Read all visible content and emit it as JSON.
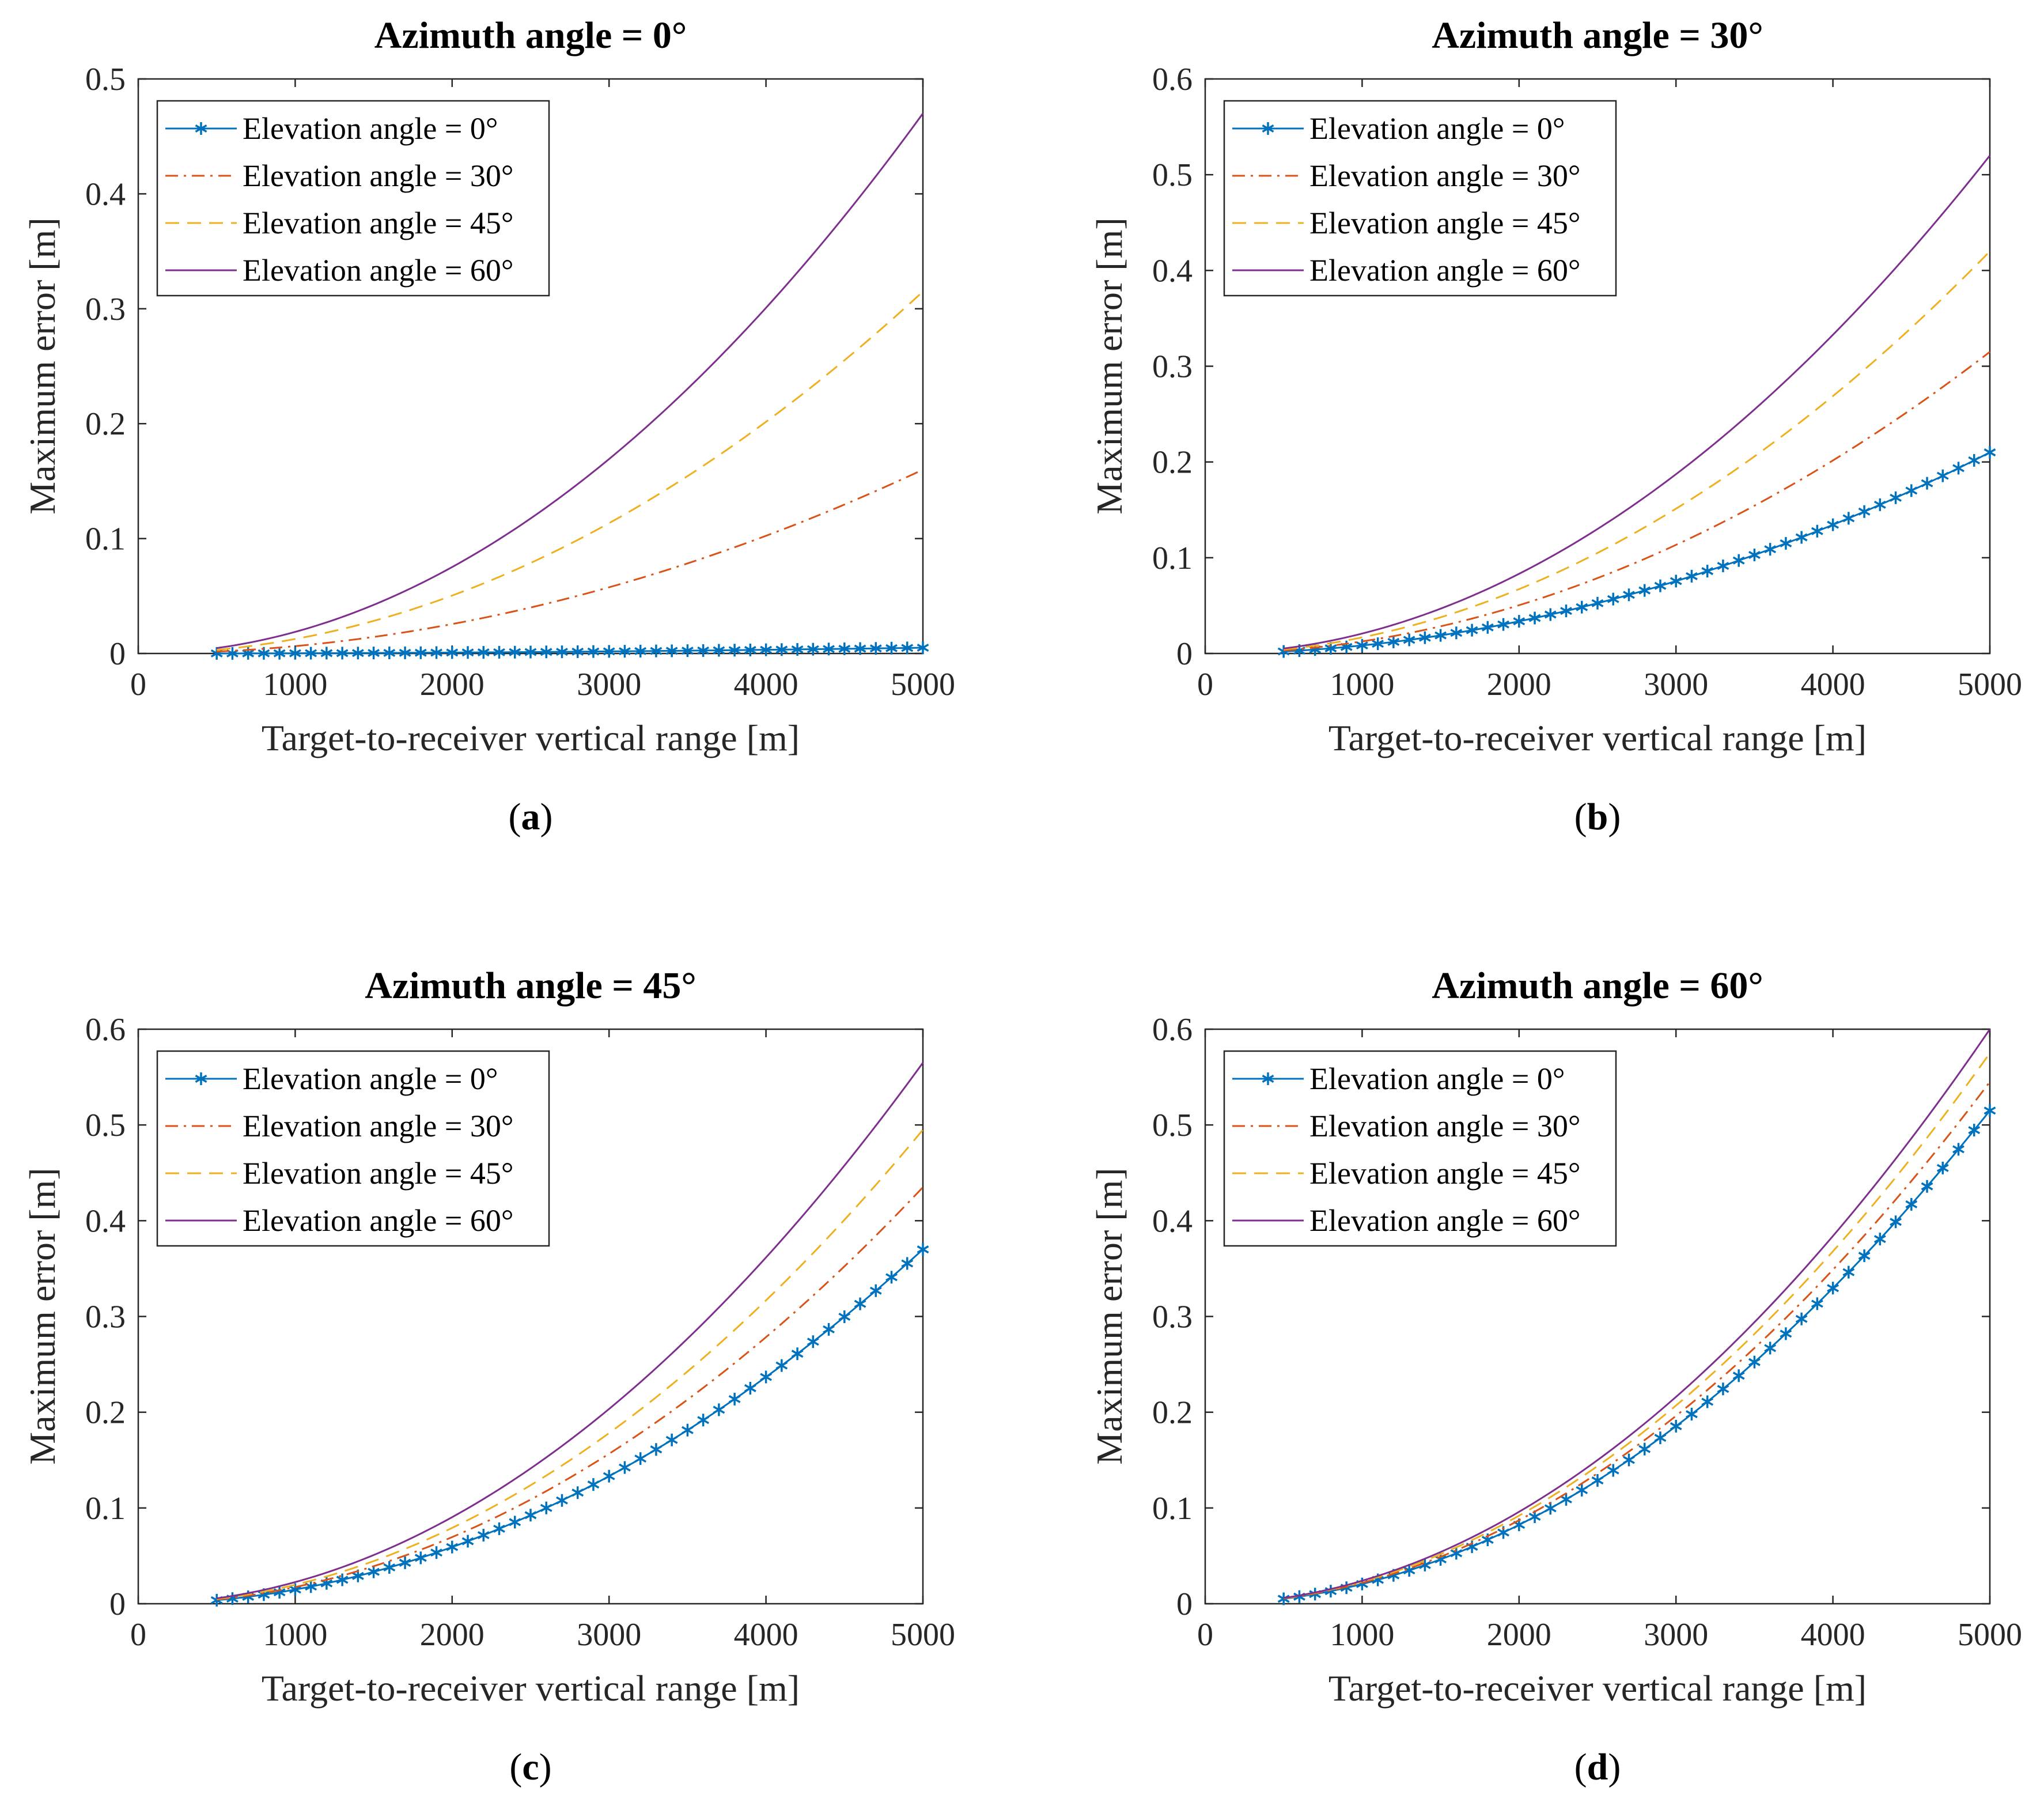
{
  "colors": {
    "series_blue": "#0072BD",
    "series_orange": "#D95319",
    "series_yellow": "#EDB120",
    "series_purple": "#7E2F8E",
    "axis": "#262626"
  },
  "chart_data": [
    {
      "type": "line",
      "title": "Azimuth angle = 0°",
      "xlabel": "Target-to-receiver vertical range [m]",
      "ylabel": "Maximum error [m]",
      "xlim": [
        0,
        5000
      ],
      "ylim": [
        0,
        0.5
      ],
      "xticks": [
        "0",
        "1000",
        "2000",
        "3000",
        "4000",
        "5000"
      ],
      "yticks": [
        "0",
        "0.1",
        "0.2",
        "0.3",
        "0.4",
        "0.5"
      ],
      "legend_position": "top-left",
      "caption_letter": "a",
      "caption": {
        "open": "(",
        "letter": "a",
        "close": ")"
      },
      "x_start": 500,
      "x_end": 5000,
      "series": [
        {
          "name": "Elevation angle = 0°",
          "style": "solid-star",
          "color": "#0072BD",
          "end_value": 0.005
        },
        {
          "name": "Elevation angle = 30°",
          "style": "dashdot",
          "color": "#D95319",
          "end_value": 0.16
        },
        {
          "name": "Elevation angle = 45°",
          "style": "dashed",
          "color": "#EDB120",
          "end_value": 0.315
        },
        {
          "name": "Elevation angle = 60°",
          "style": "solid",
          "color": "#7E2F8E",
          "end_value": 0.47
        }
      ]
    },
    {
      "type": "line",
      "title": "Azimuth angle = 30°",
      "xlabel": "Target-to-receiver vertical range [m]",
      "ylabel": "Maximum error [m]",
      "xlim": [
        0,
        5000
      ],
      "ylim": [
        0,
        0.6
      ],
      "xticks": [
        "0",
        "1000",
        "2000",
        "3000",
        "4000",
        "5000"
      ],
      "yticks": [
        "0",
        "0.1",
        "0.2",
        "0.3",
        "0.4",
        "0.5",
        "0.6"
      ],
      "legend_position": "top-left",
      "caption": {
        "open": "(",
        "letter": "b",
        "close": ")"
      },
      "x_start": 500,
      "x_end": 5000,
      "series": [
        {
          "name": "Elevation angle = 0°",
          "style": "solid-star",
          "color": "#0072BD",
          "end_value": 0.21
        },
        {
          "name": "Elevation angle = 30°",
          "style": "dashdot",
          "color": "#D95319",
          "end_value": 0.315
        },
        {
          "name": "Elevation angle = 45°",
          "style": "dashed",
          "color": "#EDB120",
          "end_value": 0.42
        },
        {
          "name": "Elevation angle = 60°",
          "style": "solid",
          "color": "#7E2F8E",
          "end_value": 0.52
        }
      ]
    },
    {
      "type": "line",
      "title": "Azimuth angle = 45°",
      "xlabel": "Target-to-receiver vertical range [m]",
      "ylabel": "Maximum error [m]",
      "xlim": [
        0,
        5000
      ],
      "ylim": [
        0,
        0.6
      ],
      "xticks": [
        "0",
        "1000",
        "2000",
        "3000",
        "4000",
        "5000"
      ],
      "yticks": [
        "0",
        "0.1",
        "0.2",
        "0.3",
        "0.4",
        "0.5",
        "0.6"
      ],
      "legend_position": "top-left",
      "caption": {
        "open": "(",
        "letter": "c",
        "close": ")"
      },
      "x_start": 500,
      "x_end": 5000,
      "series": [
        {
          "name": "Elevation angle = 0°",
          "style": "solid-star",
          "color": "#0072BD",
          "end_value": 0.37
        },
        {
          "name": "Elevation angle = 30°",
          "style": "dashdot",
          "color": "#D95319",
          "end_value": 0.435
        },
        {
          "name": "Elevation angle = 45°",
          "style": "dashed",
          "color": "#EDB120",
          "end_value": 0.495
        },
        {
          "name": "Elevation angle = 60°",
          "style": "solid",
          "color": "#7E2F8E",
          "end_value": 0.565
        }
      ]
    },
    {
      "type": "line",
      "title": "Azimuth angle = 60°",
      "xlabel": "Target-to-receiver vertical range [m]",
      "ylabel": "Maximum error [m]",
      "xlim": [
        0,
        5000
      ],
      "ylim": [
        0,
        0.6
      ],
      "xticks": [
        "0",
        "1000",
        "2000",
        "3000",
        "4000",
        "5000"
      ],
      "yticks": [
        "0",
        "0.1",
        "0.2",
        "0.3",
        "0.4",
        "0.5",
        "0.6"
      ],
      "legend_position": "top-left",
      "caption": {
        "open": "(",
        "letter": "d",
        "close": ")"
      },
      "x_start": 500,
      "x_end": 5000,
      "series": [
        {
          "name": "Elevation angle = 0°",
          "style": "solid-star",
          "color": "#0072BD",
          "end_value": 0.515
        },
        {
          "name": "Elevation angle = 30°",
          "style": "dashdot",
          "color": "#D95319",
          "end_value": 0.545
        },
        {
          "name": "Elevation angle = 45°",
          "style": "dashed",
          "color": "#EDB120",
          "end_value": 0.575
        },
        {
          "name": "Elevation angle = 60°",
          "style": "solid",
          "color": "#7E2F8E",
          "end_value": 0.6
        }
      ]
    }
  ]
}
